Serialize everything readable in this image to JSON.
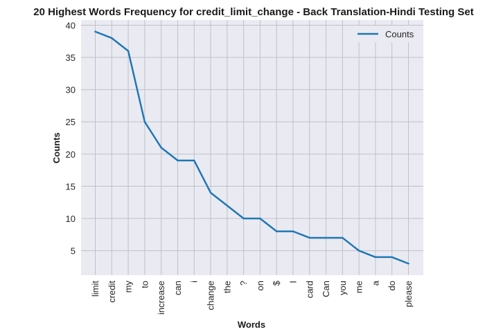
{
  "chart_data": {
    "type": "line",
    "title": "20 Highest Words Frequency for credit_limit_change - Back Translation-Hindi Testing Set",
    "xlabel": "Words",
    "ylabel": "Counts",
    "categories": [
      "limit",
      "credit",
      "my",
      "to",
      "increase",
      "can",
      "i",
      "change",
      "the",
      "?",
      "on",
      "$",
      "I",
      "card",
      "Can",
      "you",
      "me",
      "a",
      "do",
      "please"
    ],
    "series": [
      {
        "name": "Counts",
        "values": [
          39,
          38,
          36,
          25,
          21,
          19,
          19,
          14,
          12,
          10,
          10,
          8,
          8,
          7,
          7,
          7,
          5,
          4,
          4,
          3
        ]
      }
    ],
    "ylim": [
      1.2,
      40.8
    ],
    "yticks": [
      5,
      10,
      15,
      20,
      25,
      30,
      35,
      40
    ],
    "grid": true,
    "legend_position": "top-right",
    "colors": {
      "line": "#1f77b4",
      "background": "#eaeaf2",
      "grid": "#c0c0c8"
    }
  }
}
